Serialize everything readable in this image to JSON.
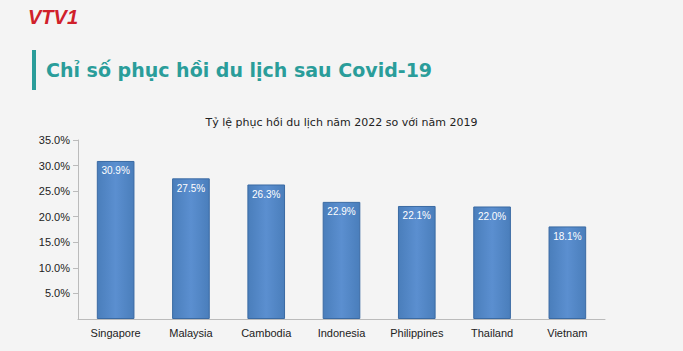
{
  "chart_data": {
    "type": "bar",
    "title": "Chỉ số phục hồi du lịch sau Covid-19",
    "subtitle": "Tỷ lệ phục hồi du lịch năm 2022 so với năm 2019",
    "annotations": [
      "VTV1"
    ],
    "categories": [
      "Singapore",
      "Malaysia",
      "Cambodia",
      "Indonesia",
      "Philippines",
      "Thailand",
      "Vietnam"
    ],
    "values": [
      30.9,
      27.5,
      26.3,
      22.9,
      22.1,
      22.0,
      18.1
    ],
    "value_labels": [
      "30.9%",
      "27.5%",
      "26.3%",
      "22.9%",
      "22.1%",
      "22.0%",
      "18.1%"
    ],
    "data_labels": true,
    "color": "#4a7ebb",
    "ylim": [
      0,
      35
    ],
    "yticks": [
      {
        "value": 5,
        "label": "5.0%"
      },
      {
        "value": 10,
        "label": "10.0%"
      },
      {
        "value": 15,
        "label": "15.0%"
      },
      {
        "value": 20,
        "label": "20.0%"
      },
      {
        "value": 25,
        "label": "25.0%"
      },
      {
        "value": 30,
        "label": "30.0%"
      },
      {
        "value": 35,
        "label": "35.0%"
      }
    ],
    "grid": false
  }
}
